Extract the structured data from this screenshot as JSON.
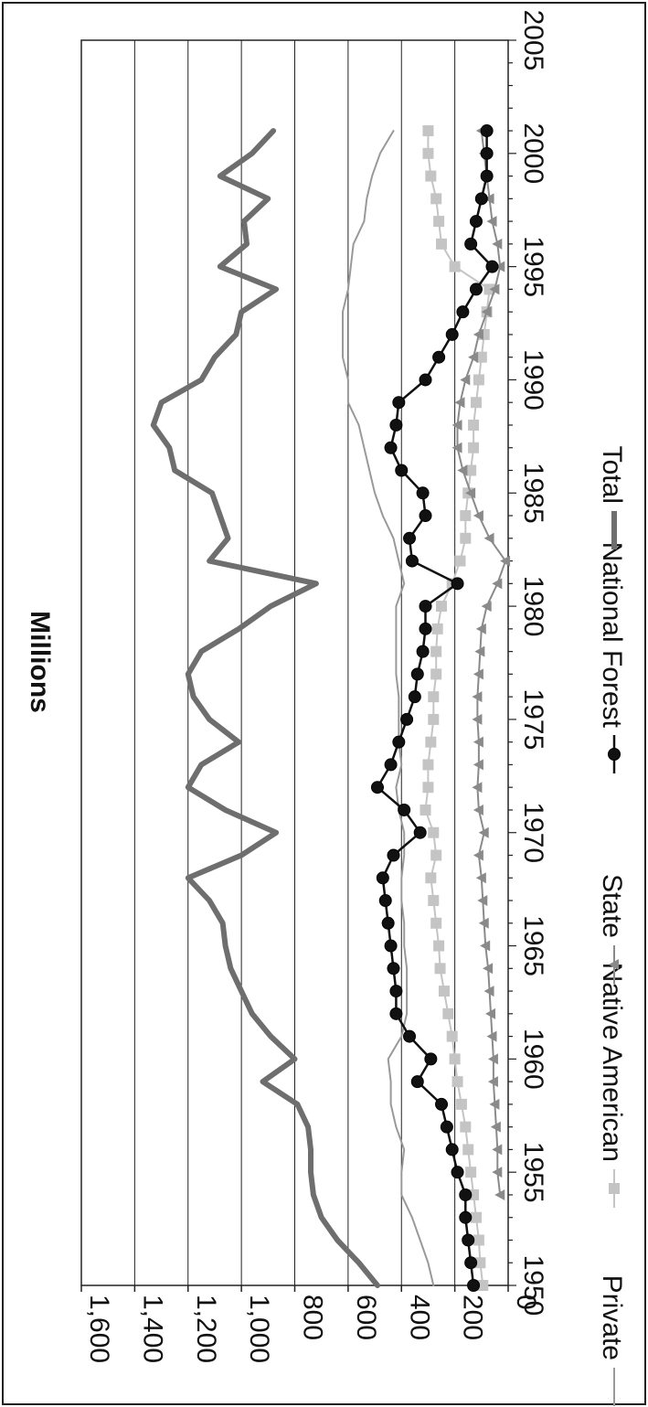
{
  "chart_data": {
    "type": "line",
    "ylabel": "Millions",
    "xlabel": "",
    "xlim": [
      1950,
      2005
    ],
    "ylim": [
      0,
      1600
    ],
    "x_ticks": [
      1950,
      1955,
      1960,
      1965,
      1970,
      1975,
      1980,
      1985,
      1990,
      1995,
      2000,
      2005
    ],
    "x_tick_labels": [
      "1950",
      "1955",
      "1960",
      "1965",
      "1970",
      "1975",
      "1980",
      "1985",
      "1990",
      "1995",
      "2000",
      "2005"
    ],
    "y_ticks": [
      0,
      200,
      400,
      600,
      800,
      1000,
      1200,
      1400,
      1600
    ],
    "y_tick_labels": [
      "0",
      "200",
      "400",
      "600",
      "800",
      "1,000",
      "1,200",
      "1,400",
      "1,600"
    ],
    "grid": true,
    "rotated": "90deg-clockwise",
    "legend_position": "bottom",
    "series": [
      {
        "name": "Private",
        "color": "#999999",
        "marker": "none",
        "x": [
          1950,
          1951,
          1952,
          1953,
          1954,
          1955,
          1956,
          1957,
          1958,
          1959,
          1960,
          1961,
          1962,
          1963,
          1964,
          1965,
          1966,
          1967,
          1968,
          1969,
          1970,
          1971,
          1972,
          1973,
          1974,
          1975,
          1976,
          1977,
          1978,
          1979,
          1980,
          1981,
          1982,
          1983,
          1984,
          1985,
          1986,
          1987,
          1988,
          1989,
          1990,
          1991,
          1992,
          1993,
          1994,
          1995,
          1996,
          1997,
          1998,
          1999,
          2000,
          2001
        ],
        "y": [
          280,
          300,
          330,
          360,
          400,
          400,
          390,
          420,
          440,
          440,
          450,
          400,
          380,
          380,
          380,
          390,
          390,
          400,
          400,
          390,
          390,
          410,
          420,
          400,
          410,
          410,
          410,
          420,
          420,
          420,
          420,
          390,
          410,
          430,
          470,
          500,
          520,
          540,
          560,
          600,
          600,
          620,
          620,
          620,
          600,
          590,
          580,
          540,
          530,
          510,
          480,
          430
        ]
      },
      {
        "name": "Native American",
        "color": "#c4c4c4",
        "marker": "square",
        "x": [
          1950,
          1951,
          1952,
          1953,
          1954,
          1955,
          1956,
          1957,
          1958,
          1959,
          1960,
          1961,
          1962,
          1963,
          1964,
          1965,
          1966,
          1967,
          1968,
          1969,
          1970,
          1971,
          1972,
          1973,
          1974,
          1975,
          1976,
          1977,
          1978,
          1979,
          1980,
          1981,
          1982,
          1983,
          1984,
          1985,
          1986,
          1987,
          1988,
          1989,
          1990,
          1991,
          1992,
          1993,
          1994,
          1995,
          1996,
          1997,
          1998,
          1999,
          2000,
          2001
        ],
        "y": [
          95,
          105,
          110,
          120,
          130,
          140,
          150,
          160,
          175,
          190,
          200,
          210,
          225,
          240,
          255,
          260,
          270,
          280,
          290,
          270,
          280,
          310,
          300,
          300,
          290,
          280,
          280,
          270,
          270,
          265,
          250,
          210,
          180,
          160,
          160,
          150,
          140,
          130,
          130,
          120,
          110,
          100,
          90,
          80,
          70,
          200,
          250,
          260,
          270,
          290,
          300,
          300
        ]
      },
      {
        "name": "State",
        "color": "#8a8a8a",
        "marker": "triangle",
        "x": [
          1954,
          1955,
          1956,
          1957,
          1958,
          1959,
          1960,
          1961,
          1962,
          1963,
          1964,
          1965,
          1966,
          1967,
          1968,
          1969,
          1970,
          1971,
          1972,
          1973,
          1974,
          1975,
          1976,
          1977,
          1978,
          1979,
          1980,
          1981,
          1982,
          1983,
          1984,
          1985,
          1986,
          1987,
          1988,
          1989,
          1990,
          1991,
          1992,
          1993,
          1994,
          1995,
          1996,
          1997,
          1998,
          1999,
          2000,
          2001
        ],
        "y": [
          30,
          40,
          40,
          45,
          50,
          55,
          55,
          60,
          65,
          70,
          75,
          85,
          90,
          95,
          100,
          110,
          90,
          110,
          115,
          110,
          110,
          115,
          115,
          110,
          105,
          100,
          80,
          40,
          10,
          70,
          110,
          140,
          170,
          190,
          190,
          180,
          160,
          130,
          110,
          80,
          50,
          30,
          40,
          60,
          70,
          80,
          90,
          100
        ]
      },
      {
        "name": "National Forest",
        "color": "#111111",
        "marker": "circle",
        "x": [
          1950,
          1951,
          1952,
          1953,
          1954,
          1955,
          1956,
          1957,
          1958,
          1959,
          1960,
          1961,
          1962,
          1963,
          1964,
          1965,
          1966,
          1967,
          1968,
          1969,
          1970,
          1971,
          1972,
          1973,
          1974,
          1975,
          1976,
          1977,
          1978,
          1979,
          1980,
          1981,
          1982,
          1983,
          1984,
          1985,
          1986,
          1987,
          1988,
          1989,
          1990,
          1991,
          1992,
          1993,
          1994,
          1995,
          1996,
          1997,
          1998,
          1999,
          2000,
          2001
        ],
        "y": [
          130,
          140,
          150,
          160,
          160,
          190,
          210,
          230,
          250,
          340,
          290,
          370,
          420,
          420,
          430,
          440,
          450,
          460,
          470,
          430,
          330,
          390,
          490,
          440,
          410,
          380,
          350,
          340,
          320,
          310,
          310,
          190,
          360,
          370,
          310,
          320,
          400,
          440,
          420,
          410,
          310,
          260,
          210,
          170,
          120,
          60,
          140,
          120,
          100,
          80,
          80,
          80
        ]
      },
      {
        "name": "Total",
        "color": "#6e6e6e",
        "marker": "none",
        "x": [
          1950,
          1951,
          1952,
          1953,
          1954,
          1955,
          1956,
          1957,
          1958,
          1959,
          1960,
          1961,
          1962,
          1963,
          1964,
          1965,
          1966,
          1967,
          1968,
          1969,
          1970,
          1971,
          1972,
          1973,
          1974,
          1975,
          1976,
          1977,
          1978,
          1979,
          1980,
          1981,
          1982,
          1983,
          1984,
          1985,
          1986,
          1987,
          1988,
          1989,
          1990,
          1991,
          1992,
          1993,
          1994,
          1995,
          1996,
          1997,
          1998,
          1999,
          2000,
          2001
        ],
        "y": [
          490,
          560,
          640,
          700,
          730,
          740,
          740,
          750,
          790,
          920,
          800,
          890,
          960,
          1000,
          1040,
          1060,
          1070,
          1120,
          1200,
          1000,
          870,
          1060,
          1200,
          1150,
          1010,
          1120,
          1180,
          1200,
          1150,
          1010,
          890,
          720,
          1120,
          1050,
          1080,
          1110,
          1250,
          1270,
          1330,
          1300,
          1150,
          1100,
          1020,
          1000,
          870,
          1080,
          980,
          990,
          900,
          1080,
          960,
          880
        ]
      }
    ]
  }
}
